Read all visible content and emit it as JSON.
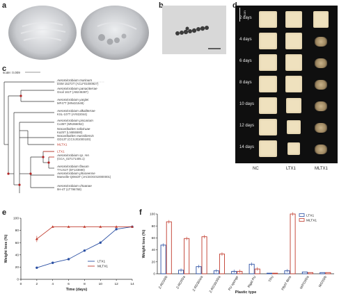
{
  "panels": {
    "a": "a",
    "b": "b",
    "c": "c",
    "d": "d",
    "e": "e",
    "f": "f"
  },
  "tree": {
    "scale_label": "scale: 0.009",
    "taxa": [
      {
        "name": "Aeromicrobium marinum",
        "strain": "DSM 15272T (ACLF01000927)",
        "red": false
      },
      {
        "name": "Aeromicrobium panaciterrae",
        "strain": "Gsoil 161T (AB245387)",
        "red": false
      },
      {
        "name": "Aeromicrobium yanjiei",
        "strain": "MF47T (MN421549)",
        "red": false
      },
      {
        "name": "Aeromicrobium alkaliterrae",
        "strain": "KSL-107T (AY822044)",
        "red": false
      },
      {
        "name": "Aeromicrobium piscarium",
        "strain": "Co35T (MN366052)",
        "red": false
      },
      {
        "name": "Nocardioides soliviruae",
        "strain": "Ka25T (LN555580)",
        "red": false
      },
      {
        "name": "Nocardioides massiliensis",
        "strain": "GD13T (CCXJ01000100)",
        "red": false
      },
      {
        "name": "MLTX1",
        "strain": "",
        "red": true
      },
      {
        "name": "LTX1",
        "strain": "",
        "red": true
      },
      {
        "name": "Aeromicrobium sp. HA",
        "strain": "(GCA_027171405.1)",
        "red": false
      },
      {
        "name": "Aeromicrobium flavum",
        "strain": "TYLN1T (EF133690)",
        "red": false
      },
      {
        "name": "Aeromicrobium phoceense",
        "strain": "Marseille-Q0843T (JACEOG010000001)",
        "red": false
      },
      {
        "name": "Aeromicrobium choanae",
        "strain": "9H-4T (LT796768)",
        "red": false
      }
    ]
  },
  "images": {
    "scale_bar": "1cm",
    "days": [
      "2 days",
      "4 days",
      "6 days",
      "8 days",
      "10 days",
      "12 days",
      "14 days"
    ],
    "columns": [
      "NC",
      "LTX1",
      "MLTX1"
    ]
  },
  "chart_data": [
    {
      "type": "line",
      "panel": "e",
      "xlabel": "Time (days)",
      "ylabel": "Weight loss (%)",
      "xlim": [
        0,
        14
      ],
      "ylim": [
        0,
        100
      ],
      "xticks": [
        0,
        2,
        4,
        6,
        8,
        10,
        12,
        14
      ],
      "yticks": [
        0,
        20,
        40,
        60,
        80,
        100
      ],
      "series": [
        {
          "name": "LTX1",
          "color": "#2a4fa3",
          "x": [
            2,
            4,
            6,
            8,
            10,
            12,
            14
          ],
          "y": [
            19,
            27,
            33,
            47,
            60,
            82,
            86
          ]
        },
        {
          "name": "MLTX1",
          "color": "#c0392b",
          "x": [
            2,
            4,
            6,
            8,
            10,
            12,
            14
          ],
          "y": [
            66,
            86,
            86,
            86,
            86,
            86,
            86
          ]
        }
      ],
      "legend": "lower-right"
    },
    {
      "type": "bar",
      "panel": "f",
      "xlabel": "Plastic type",
      "ylabel": "Weight loss (%)",
      "ylim": [
        0,
        100
      ],
      "yticks": [
        0,
        20,
        40,
        60,
        80,
        100
      ],
      "categories": [
        "Z-RD30/b",
        "Z-RD30/a",
        "Z-RD30/a/a",
        "Z-RD30/30/a",
        "PU sponge",
        "Rigid PU",
        "TPU",
        "PBAT films",
        "M/FD30/a",
        "M/D30/b"
      ],
      "series": [
        {
          "name": "LTX1",
          "color": "#2a4fa3",
          "values": [
            48,
            6,
            12,
            5,
            4,
            16,
            1,
            5,
            3,
            2
          ]
        },
        {
          "name": "MLTX1",
          "color": "#c0392b",
          "values": [
            87,
            59,
            62,
            33,
            4,
            8,
            1,
            100,
            2,
            2
          ]
        }
      ],
      "legend": "top-right"
    }
  ]
}
